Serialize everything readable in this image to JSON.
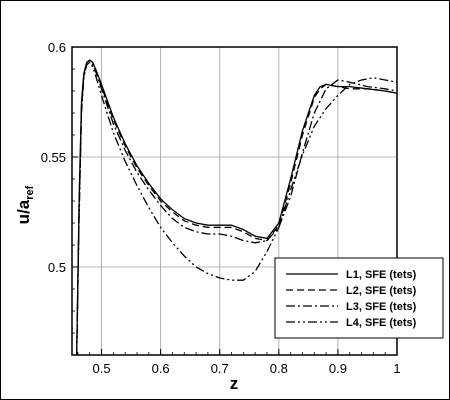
{
  "chart_data": {
    "type": "line",
    "xlabel": "z",
    "ylabel": {
      "main": "u/a",
      "sub": "ref"
    },
    "xlim": [
      0.45,
      1.0
    ],
    "ylim": [
      0.46,
      0.6
    ],
    "grid": true,
    "legend_position": "bottom-right",
    "x_ticks": [
      {
        "value": 0.5,
        "label": "0.5"
      },
      {
        "value": 0.6,
        "label": "0.6"
      },
      {
        "value": 0.7,
        "label": "0.7"
      },
      {
        "value": 0.8,
        "label": "0.8"
      },
      {
        "value": 0.9,
        "label": "0.9"
      },
      {
        "value": 1.0,
        "label": "1"
      }
    ],
    "y_ticks": [
      {
        "value": 0.5,
        "label": "0.5"
      },
      {
        "value": 0.55,
        "label": "0.55"
      },
      {
        "value": 0.6,
        "label": "0.6"
      }
    ],
    "series": [
      {
        "name": "L1, SFE (tets)",
        "dash": "solid",
        "x": [
          0.458,
          0.462,
          0.466,
          0.47,
          0.475,
          0.48,
          0.485,
          0.49,
          0.5,
          0.52,
          0.54,
          0.56,
          0.58,
          0.6,
          0.62,
          0.64,
          0.66,
          0.68,
          0.7,
          0.72,
          0.74,
          0.76,
          0.78,
          0.8,
          0.82,
          0.84,
          0.86,
          0.87,
          0.88,
          0.9,
          0.92,
          0.95,
          0.98,
          1.0
        ],
        "y": [
          0.46,
          0.53,
          0.575,
          0.588,
          0.593,
          0.594,
          0.593,
          0.59,
          0.583,
          0.568,
          0.556,
          0.546,
          0.538,
          0.531,
          0.526,
          0.522,
          0.52,
          0.519,
          0.519,
          0.519,
          0.517,
          0.514,
          0.513,
          0.52,
          0.54,
          0.562,
          0.578,
          0.582,
          0.583,
          0.582,
          0.582,
          0.581,
          0.58,
          0.579
        ]
      },
      {
        "name": "L2, SFE (tets)",
        "dash": "dashed",
        "x": [
          0.458,
          0.462,
          0.466,
          0.47,
          0.475,
          0.48,
          0.485,
          0.49,
          0.5,
          0.52,
          0.54,
          0.56,
          0.58,
          0.6,
          0.62,
          0.64,
          0.66,
          0.68,
          0.7,
          0.72,
          0.74,
          0.76,
          0.78,
          0.8,
          0.82,
          0.84,
          0.86,
          0.87,
          0.88,
          0.9,
          0.92,
          0.95,
          0.98,
          1.0
        ],
        "y": [
          0.46,
          0.528,
          0.573,
          0.587,
          0.593,
          0.594,
          0.593,
          0.59,
          0.582,
          0.567,
          0.555,
          0.545,
          0.537,
          0.53,
          0.525,
          0.521,
          0.519,
          0.518,
          0.518,
          0.518,
          0.516,
          0.513,
          0.512,
          0.519,
          0.538,
          0.56,
          0.577,
          0.581,
          0.583,
          0.582,
          0.581,
          0.581,
          0.58,
          0.579
        ]
      },
      {
        "name": "L3, SFE (tets)",
        "dash": "dashdot",
        "x": [
          0.458,
          0.462,
          0.466,
          0.47,
          0.475,
          0.48,
          0.485,
          0.49,
          0.5,
          0.52,
          0.54,
          0.56,
          0.58,
          0.6,
          0.62,
          0.64,
          0.66,
          0.68,
          0.7,
          0.72,
          0.74,
          0.76,
          0.78,
          0.8,
          0.82,
          0.84,
          0.86,
          0.88,
          0.9,
          0.92,
          0.95,
          0.98,
          1.0
        ],
        "y": [
          0.46,
          0.525,
          0.572,
          0.587,
          0.593,
          0.594,
          0.592,
          0.589,
          0.581,
          0.565,
          0.553,
          0.543,
          0.535,
          0.528,
          0.522,
          0.518,
          0.516,
          0.515,
          0.515,
          0.514,
          0.512,
          0.511,
          0.512,
          0.518,
          0.532,
          0.552,
          0.57,
          0.581,
          0.585,
          0.584,
          0.582,
          0.581,
          0.58
        ]
      },
      {
        "name": "L4, SFE (tets)",
        "dash": "dashdotdot",
        "x": [
          0.458,
          0.462,
          0.466,
          0.47,
          0.475,
          0.48,
          0.485,
          0.49,
          0.5,
          0.52,
          0.54,
          0.56,
          0.58,
          0.6,
          0.62,
          0.64,
          0.66,
          0.68,
          0.7,
          0.72,
          0.74,
          0.76,
          0.78,
          0.8,
          0.82,
          0.84,
          0.86,
          0.88,
          0.9,
          0.92,
          0.94,
          0.96,
          0.98,
          1.0
        ],
        "y": [
          0.46,
          0.522,
          0.57,
          0.586,
          0.592,
          0.593,
          0.591,
          0.587,
          0.578,
          0.561,
          0.548,
          0.537,
          0.527,
          0.518,
          0.511,
          0.505,
          0.5,
          0.497,
          0.495,
          0.494,
          0.494,
          0.498,
          0.507,
          0.518,
          0.535,
          0.551,
          0.564,
          0.572,
          0.578,
          0.583,
          0.585,
          0.586,
          0.585,
          0.584
        ]
      }
    ]
  }
}
